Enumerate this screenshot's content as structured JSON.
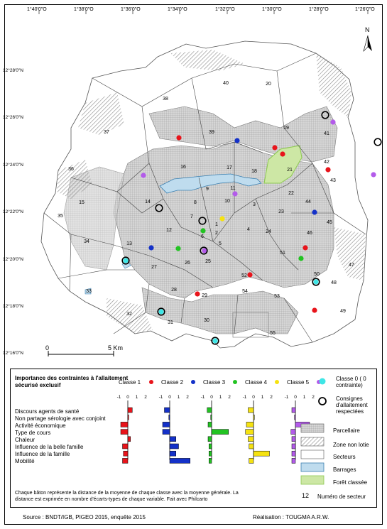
{
  "axes": {
    "longitudes": [
      "1°40'0\"O",
      "1°38'0\"O",
      "1°36'0\"O",
      "1°34'0\"O",
      "1°32'0\"O",
      "1°30'0\"O",
      "1°28'0\"O",
      "1°26'0\"O"
    ],
    "latitudes": [
      "12°28'0\"N",
      "12°26'0\"N",
      "12°24'0\"N",
      "12°22'0\"N",
      "12°20'0\"N",
      "12°18'0\"N",
      "12°16'0\"N"
    ]
  },
  "north_label": "N",
  "scale": {
    "start": "0",
    "end": "5 Km"
  },
  "sectors": [
    "1",
    "2",
    "3",
    "4",
    "5",
    "6",
    "7",
    "8",
    "9",
    "10",
    "11",
    "12",
    "13",
    "14",
    "15",
    "16",
    "17",
    "18",
    "19",
    "20",
    "21",
    "22",
    "23",
    "24",
    "25",
    "26",
    "27",
    "28",
    "29",
    "30",
    "31",
    "32",
    "33",
    "34",
    "35",
    "36",
    "37",
    "38",
    "39",
    "40",
    "41",
    "42",
    "43",
    "44",
    "45",
    "46",
    "47",
    "48",
    "49",
    "50",
    "51",
    "52",
    "53",
    "54",
    "55"
  ],
  "legend": {
    "title": "Importance des contraintes à l'allaitement sécurisé exclusif",
    "classes": [
      {
        "label": "Classe 1",
        "color": "#e8141b"
      },
      {
        "label": "Classe 2",
        "color": "#1431c8"
      },
      {
        "label": "Classe 3",
        "color": "#22c322"
      },
      {
        "label": "Classe 4",
        "color": "#f5e211"
      },
      {
        "label": "Classe 5",
        "color": "#b35bea"
      }
    ],
    "axis_ticks": [
      "-1",
      "0",
      "1",
      "2"
    ],
    "variables": [
      "Discours agents de santé",
      "Non partage sérologie avec conjoint",
      "Activité économique",
      "Type de cours",
      "Chaleur",
      "Influence de la belle famille",
      "Influence de la famille",
      "Mobilité"
    ],
    "bar_values": [
      [
        0.5,
        0.1,
        -0.8,
        -0.8,
        0.3,
        -0.6,
        -0.5,
        -0.6
      ],
      [
        -0.6,
        -0.1,
        -0.8,
        -0.8,
        0.7,
        1.0,
        0.7,
        2.3
      ],
      [
        -0.5,
        -0.1,
        -0.4,
        1.9,
        -0.4,
        -0.3,
        -0.3,
        -0.3
      ],
      [
        -0.6,
        0.1,
        -0.8,
        -0.9,
        -0.6,
        -0.5,
        1.8,
        -0.5
      ],
      [
        -0.4,
        -0.1,
        1.6,
        -0.5,
        -0.4,
        -0.4,
        -0.4,
        -0.4
      ]
    ],
    "class0": "Classe 0 ( 0 contrainte)",
    "consignes": "Consignes d'allaitement respectées",
    "items": {
      "parcellaire": "Parcellaire",
      "non_lotie": "Zone non lotie",
      "secteurs": "Secteurs",
      "barrages": "Barrages",
      "foret": "Forêt classée",
      "sector_number_example": "12",
      "sector_number": "Numéro de secteur"
    },
    "note": "Chaque bâton représente la distance de la moyenne de chaque classe avec la moyenne générale. La distance est exprimée en nombre d'écarts-types de chaque variable. Fait avec Philcarto"
  },
  "source": "Source : BNDT/IGB, PIGEO 2015, enquête 2015",
  "author": "Réalisation : TOUGMA A.R.W.",
  "colors": {
    "class0": "#3ee6e6",
    "water": "#bfdcee",
    "forest": "#cde7a5",
    "built": "#b9b9b9"
  }
}
